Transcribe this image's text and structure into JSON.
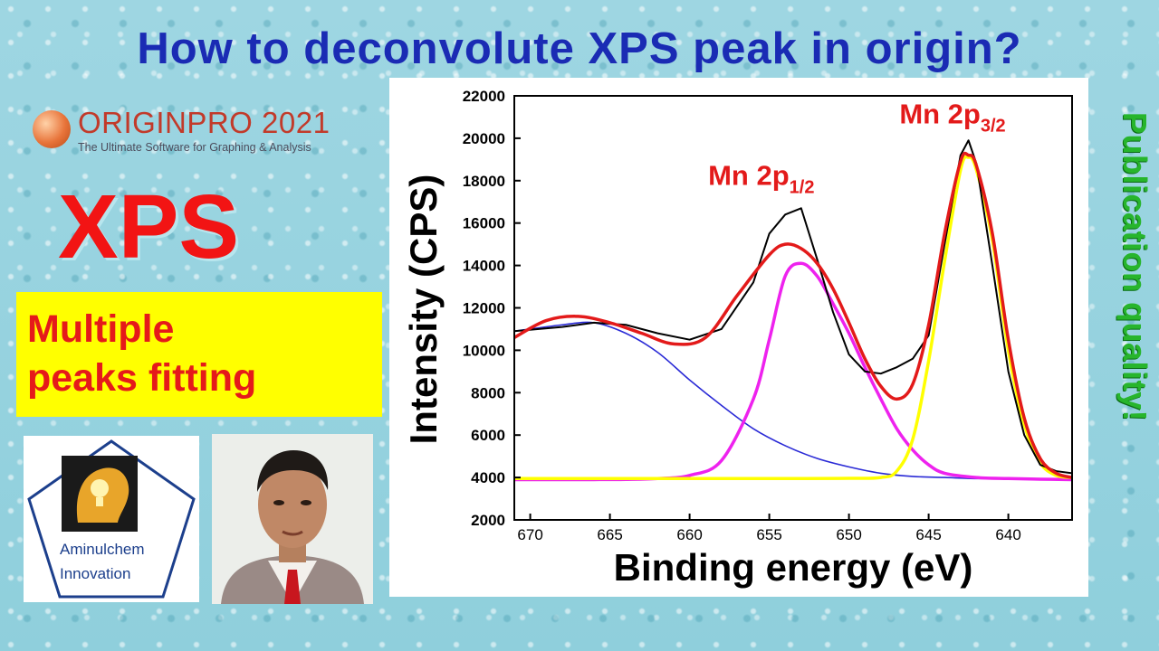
{
  "title": "How to deconvolute XPS peak in origin?",
  "origin": {
    "name": "ORIGINPRO",
    "year": "2021",
    "tagline": "The Ultimate Software for Graphing & Analysis"
  },
  "xps_label": "XPS",
  "fitting_label": [
    "Multiple",
    "peaks fitting"
  ],
  "channel": {
    "line1": "Aminulchem",
    "line2": "Innovation"
  },
  "side_text": "Publication quality!",
  "colors": {
    "title": "#1a2bb4",
    "accent_red": "#f21414",
    "yellow_box": "#ffff00",
    "side_text": "#27b52c",
    "raw": "#000000",
    "envelope": "#e31a1a",
    "peak_1": "#ee22ee",
    "peak_2": "#ffff00",
    "background_peak": "#2a2ad6"
  },
  "chart_data": {
    "type": "line",
    "xlabel": "Binding energy (eV)",
    "ylabel": "Intensity (CPS)",
    "xlim": [
      671,
      636
    ],
    "ylim": [
      2000,
      22000
    ],
    "x_ticks": [
      670,
      665,
      660,
      655,
      650,
      645,
      640
    ],
    "y_ticks": [
      2000,
      4000,
      6000,
      8000,
      10000,
      12000,
      14000,
      16000,
      18000,
      20000,
      22000
    ],
    "annotations": [
      {
        "base": "Mn 2p",
        "sub": "1/2",
        "x": 655.5,
        "y": 17800
      },
      {
        "base": "Mn 2p",
        "sub": "3/2",
        "x": 643.5,
        "y": 20700
      }
    ],
    "series": [
      {
        "role": "raw",
        "x": [
          671,
          668,
          666,
          664,
          662,
          660,
          658,
          656,
          655,
          654,
          653,
          652,
          651,
          650,
          649,
          648,
          647,
          646,
          645,
          644,
          643,
          642.5,
          642,
          641,
          640,
          639,
          638,
          637,
          636
        ],
        "y": [
          10900,
          11100,
          11300,
          11200,
          10800,
          10500,
          11000,
          13200,
          15500,
          16400,
          16700,
          14300,
          11800,
          9800,
          9000,
          8900,
          9200,
          9600,
          10700,
          15000,
          19200,
          19900,
          18800,
          14000,
          9000,
          6000,
          4600,
          4300,
          4200
        ]
      },
      {
        "role": "envelope",
        "x": [
          671,
          669,
          667,
          665,
          663,
          661,
          659,
          657,
          655,
          654,
          653,
          652,
          651,
          650,
          649,
          648,
          647,
          646,
          645,
          644,
          643,
          642.5,
          642,
          641,
          640,
          639,
          638,
          637,
          636
        ],
        "y": [
          10600,
          11400,
          11600,
          11300,
          10800,
          10300,
          10600,
          12600,
          14500,
          15000,
          14800,
          14100,
          12900,
          11300,
          9600,
          8300,
          7700,
          8400,
          11200,
          15500,
          18900,
          19200,
          18700,
          15500,
          10500,
          6800,
          4900,
          4200,
          4000
        ]
      },
      {
        "role": "peak",
        "x": [
          671,
          668,
          666,
          664,
          662,
          660,
          658,
          656,
          655,
          654,
          653,
          652,
          651,
          650,
          649,
          648,
          647,
          646,
          645,
          644,
          642,
          640,
          638,
          636
        ],
        "y": [
          3900,
          3900,
          3900,
          3910,
          3950,
          4100,
          4800,
          7700,
          10500,
          13500,
          14100,
          13500,
          12200,
          10800,
          9200,
          7700,
          6300,
          5300,
          4600,
          4200,
          4000,
          3950,
          3920,
          3900
        ]
      },
      {
        "role": "peak",
        "x": [
          671,
          655,
          650,
          648,
          647,
          646,
          645,
          644,
          643,
          642.5,
          642,
          641,
          640,
          639,
          638,
          637,
          636
        ],
        "y": [
          3950,
          3950,
          3960,
          4000,
          4300,
          5800,
          9500,
          14200,
          18500,
          19100,
          18500,
          15200,
          10000,
          6500,
          4700,
          4100,
          4000
        ]
      },
      {
        "role": "background",
        "x": [
          671,
          668,
          666,
          664,
          662,
          660,
          658,
          656,
          654,
          652,
          650,
          648,
          646,
          644,
          642,
          640,
          638,
          636
        ],
        "y": [
          10900,
          11200,
          11300,
          10800,
          9900,
          8600,
          7400,
          6300,
          5500,
          4900,
          4500,
          4200,
          4050,
          4000,
          3950,
          3950,
          3950,
          3950
        ]
      }
    ]
  }
}
